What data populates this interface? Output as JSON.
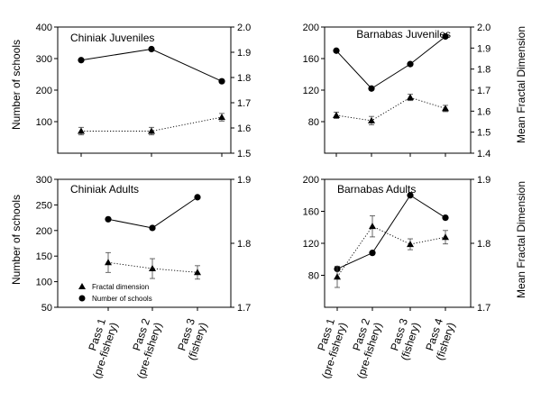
{
  "labels": {
    "left_axis": "Number of schools",
    "right_axis": "Mean Fractal Dimension"
  },
  "legend": [
    {
      "label": "Fractal dimension",
      "marker": "triangle"
    },
    {
      "label": "Number of schools",
      "marker": "circle"
    }
  ],
  "colors": {
    "ink": "#000000",
    "background": "#ffffff"
  },
  "chart_data": [
    {
      "type": "line",
      "title": "Chiniak Juveniles",
      "categories": [
        "Pass 1",
        "Pass 2",
        "Pass 3"
      ],
      "ylim": [
        0,
        400
      ],
      "yticks": [
        100,
        200,
        300,
        400
      ],
      "y2lim": [
        1.5,
        2.0
      ],
      "y2ticks": [
        1.5,
        1.6,
        1.7,
        1.8,
        1.9,
        2.0
      ],
      "series": [
        {
          "name": "Number of schools",
          "axis": "left",
          "marker": "circle",
          "style": "solid",
          "values": [
            295,
            330,
            228
          ]
        },
        {
          "name": "Fractal dimension",
          "axis": "right",
          "marker": "triangle",
          "style": "dotted",
          "values": [
            1.5875,
            1.5875,
            1.6425
          ],
          "errors": [
            0.015,
            0.015,
            0.015
          ]
        }
      ]
    },
    {
      "type": "line",
      "title": "Barnabas Juveniles",
      "categories": [
        "Pass 1",
        "Pass 2",
        "Pass 3",
        "Pass 4"
      ],
      "ylim": [
        40,
        200
      ],
      "yticks": [
        80,
        120,
        160,
        200
      ],
      "y2lim": [
        1.4,
        2.0
      ],
      "y2ticks": [
        1.4,
        1.5,
        1.6,
        1.7,
        1.8,
        1.9,
        2.0
      ],
      "series": [
        {
          "name": "Number of schools",
          "axis": "left",
          "marker": "circle",
          "style": "solid",
          "values": [
            170,
            122,
            153,
            188
          ]
        },
        {
          "name": "Fractal dimension",
          "axis": "right",
          "marker": "triangle",
          "style": "dotted",
          "values": [
            1.58,
            1.555,
            1.665,
            1.6125
          ],
          "errors": [
            0.015,
            0.02,
            0.015,
            0.015
          ]
        }
      ]
    },
    {
      "type": "line",
      "title": "Chiniak Adults",
      "categories": [
        "Pass 1",
        "Pass 2",
        "Pass 3"
      ],
      "ylim": [
        50,
        300
      ],
      "yticks": [
        50,
        100,
        150,
        200,
        250,
        300
      ],
      "y2lim": [
        1.7,
        1.9
      ],
      "y2ticks": [
        1.7,
        1.8,
        1.9
      ],
      "series": [
        {
          "name": "Number of schools",
          "axis": "left",
          "marker": "circle",
          "style": "solid",
          "values": [
            222,
            205,
            265
          ]
        },
        {
          "name": "Fractal dimension",
          "axis": "right",
          "marker": "triangle",
          "style": "dotted",
          "values": [
            1.77,
            1.7605,
            1.7545
          ],
          "errors": [
            0.0155,
            0.0155,
            0.0105
          ]
        }
      ]
    },
    {
      "type": "line",
      "title": "Barnabas Adults",
      "categories": [
        "Pass 1",
        "Pass 2",
        "Pass 3",
        "Pass 4"
      ],
      "ylim": [
        40,
        200
      ],
      "yticks": [
        80,
        120,
        160,
        200
      ],
      "y2lim": [
        1.7,
        1.9
      ],
      "y2ticks": [
        1.7,
        1.8,
        1.9
      ],
      "series": [
        {
          "name": "Number of schools",
          "axis": "left",
          "marker": "circle",
          "style": "solid",
          "values": [
            88,
            108,
            180,
            152
          ]
        },
        {
          "name": "Fractal dimension",
          "axis": "right",
          "marker": "triangle",
          "style": "dotted",
          "values": [
            1.7475,
            1.8265,
            1.7985,
            1.8095
          ],
          "errors": [
            0.0165,
            0.0165,
            0.0085,
            0.0105
          ]
        }
      ]
    }
  ],
  "x_tick_labels": {
    "three": [
      [
        "Pass 1",
        "(pre-fishery)"
      ],
      [
        "Pass 2",
        "(pre-fishery)"
      ],
      [
        "Pass 3",
        "(fishery)"
      ]
    ],
    "four": [
      [
        "Pass 1",
        "(pre-fishery)"
      ],
      [
        "Pass 2",
        "(pre-fishery)"
      ],
      [
        "Pass 3",
        "(fishery)"
      ],
      [
        "Pass 4",
        "(fishery)"
      ]
    ]
  }
}
